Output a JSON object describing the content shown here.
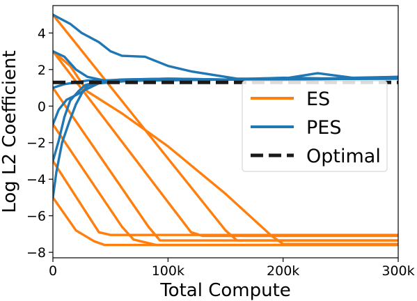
{
  "chart_data": {
    "type": "line",
    "title": "",
    "xlabel": "Total Compute",
    "ylabel": "Log L2 Coefficient",
    "xlim": [
      0,
      300000
    ],
    "ylim": [
      -8.3,
      5.5
    ],
    "x_ticks": [
      {
        "value": 0,
        "label": "0"
      },
      {
        "value": 100000,
        "label": "100k"
      },
      {
        "value": 200000,
        "label": "200k"
      },
      {
        "value": 300000,
        "label": "300k"
      }
    ],
    "y_ticks": [
      {
        "value": 4,
        "label": "4"
      },
      {
        "value": 2,
        "label": "2"
      },
      {
        "value": 0,
        "label": "0"
      },
      {
        "value": -2,
        "label": "−2"
      },
      {
        "value": -4,
        "label": "−4"
      },
      {
        "value": -6,
        "label": "−6"
      },
      {
        "value": -8,
        "label": "−8"
      }
    ],
    "grid": false,
    "legend_position": "center-right",
    "legend": [
      {
        "label": "ES",
        "color": "#ff7f0e",
        "style": "solid"
      },
      {
        "label": "PES",
        "color": "#1f77b4",
        "style": "solid"
      },
      {
        "label": "Optimal",
        "color": "#1a1a1a",
        "style": "dashed"
      }
    ],
    "series": [
      {
        "group": "ES",
        "color": "#ff7f0e",
        "x": [
          0,
          20000,
          36000,
          45000,
          300000
        ],
        "y": [
          -5,
          -6.8,
          -7.4,
          -7.6,
          -7.6
        ]
      },
      {
        "group": "ES",
        "color": "#ff7f0e",
        "x": [
          0,
          40000,
          50000,
          300000
        ],
        "y": [
          -3,
          -6.9,
          -7.05,
          -7.05
        ]
      },
      {
        "group": "ES",
        "color": "#ff7f0e",
        "x": [
          0,
          60000,
          70000,
          90000,
          300000
        ],
        "y": [
          -1,
          -6.6,
          -7.3,
          -7.6,
          -7.6
        ]
      },
      {
        "group": "ES",
        "color": "#ff7f0e",
        "x": [
          0,
          83000,
          93000,
          300000
        ],
        "y": [
          1,
          -6.6,
          -7.35,
          -7.35
        ]
      },
      {
        "group": "ES",
        "color": "#ff7f0e",
        "x": [
          0,
          120000,
          130000,
          300000
        ],
        "y": [
          3,
          -6.9,
          -7.1,
          -7.1
        ]
      },
      {
        "group": "ES",
        "color": "#ff7f0e",
        "x": [
          0,
          150000,
          160000,
          300000
        ],
        "y": [
          5,
          -6.8,
          -7.35,
          -7.35
        ]
      },
      {
        "group": "ES",
        "color": "#ff7f0e",
        "x": [
          0,
          15000,
          30000,
          60000,
          100000,
          150000,
          190000,
          200000,
          300000
        ],
        "y": [
          3,
          2.2,
          0.8,
          -0.4,
          -2.2,
          -4.8,
          -7.1,
          -7.55,
          -7.55
        ]
      },
      {
        "group": "PES",
        "color": "#1f77b4",
        "x": [
          0,
          3000,
          8000,
          14000,
          20000,
          26000,
          30000,
          40000,
          60000,
          100000,
          150000,
          200000,
          250000,
          300000
        ],
        "y": [
          -5,
          -3.6,
          -2,
          -0.9,
          0.1,
          0.8,
          1.1,
          1.35,
          1.45,
          1.5,
          1.45,
          1.55,
          1.5,
          1.6
        ]
      },
      {
        "group": "PES",
        "color": "#1f77b4",
        "x": [
          0,
          5000,
          10000,
          15000,
          22000,
          28000,
          40000,
          80000,
          150000,
          300000
        ],
        "y": [
          -3,
          -1.9,
          -0.6,
          0.3,
          0.8,
          1.15,
          1.35,
          1.4,
          1.45,
          1.55
        ]
      },
      {
        "group": "PES",
        "color": "#1f77b4",
        "x": [
          0,
          5000,
          12000,
          20000,
          30000,
          40000,
          70000,
          150000,
          300000
        ],
        "y": [
          -1,
          -0.2,
          0.35,
          0.6,
          0.95,
          1.25,
          1.4,
          1.45,
          1.5
        ]
      },
      {
        "group": "PES",
        "color": "#1f77b4",
        "x": [
          0,
          10000,
          20000,
          30000,
          40000,
          80000,
          150000,
          300000
        ],
        "y": [
          1,
          1.2,
          1.3,
          1.4,
          1.4,
          1.45,
          1.45,
          1.5
        ]
      },
      {
        "group": "PES",
        "color": "#1f77b4",
        "x": [
          0,
          10000,
          20000,
          30000,
          45000,
          60000,
          100000,
          150000,
          300000
        ],
        "y": [
          3,
          2.7,
          2.0,
          1.6,
          1.4,
          1.45,
          1.5,
          1.45,
          1.55
        ]
      },
      {
        "group": "PES",
        "color": "#1f77b4",
        "x": [
          0,
          15000,
          25000,
          40000,
          50000,
          60000,
          80000,
          100000,
          120000,
          160000,
          200000,
          230000,
          260000,
          300000
        ],
        "y": [
          5,
          4.5,
          4.0,
          3.5,
          3.0,
          2.75,
          2.7,
          2.2,
          1.9,
          1.5,
          1.5,
          1.8,
          1.55,
          1.6
        ]
      },
      {
        "group": "Optimal",
        "color": "#1a1a1a",
        "dashed": true,
        "x": [
          0,
          300000
        ],
        "y": [
          1.3,
          1.3
        ]
      }
    ]
  }
}
